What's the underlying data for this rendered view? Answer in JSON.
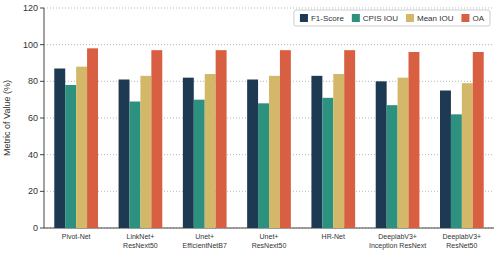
{
  "chart_data": {
    "type": "bar",
    "categories": [
      "Pivot-Net",
      "LinkNet+\nResNext50",
      "Unet+\nEfficientNetB7",
      "Unet+\nResNext50",
      "HR-Net",
      "DeeplabV3+\nInception ResNext",
      "DeeplabV3+\nResNet50"
    ],
    "series": [
      {
        "name": "F1-Score",
        "color": "#1e3a52",
        "values": [
          87,
          81,
          82,
          81,
          83,
          80,
          75
        ]
      },
      {
        "name": "CPIS IOU",
        "color": "#2d9180",
        "values": [
          78,
          69,
          70,
          68,
          71,
          67,
          62
        ]
      },
      {
        "name": "Mean IOU",
        "color": "#d4b86a",
        "values": [
          88,
          83,
          84,
          83,
          84,
          82,
          79
        ]
      },
      {
        "name": "OA",
        "color": "#d95f43",
        "values": [
          98,
          97,
          97,
          97,
          97,
          96,
          96
        ]
      }
    ],
    "ylabel": "Metric of Value (%)",
    "ylim": [
      0,
      120
    ],
    "yticks": [
      0,
      20,
      40,
      60,
      80,
      100,
      120
    ],
    "grid": true,
    "legend": "upper right"
  }
}
